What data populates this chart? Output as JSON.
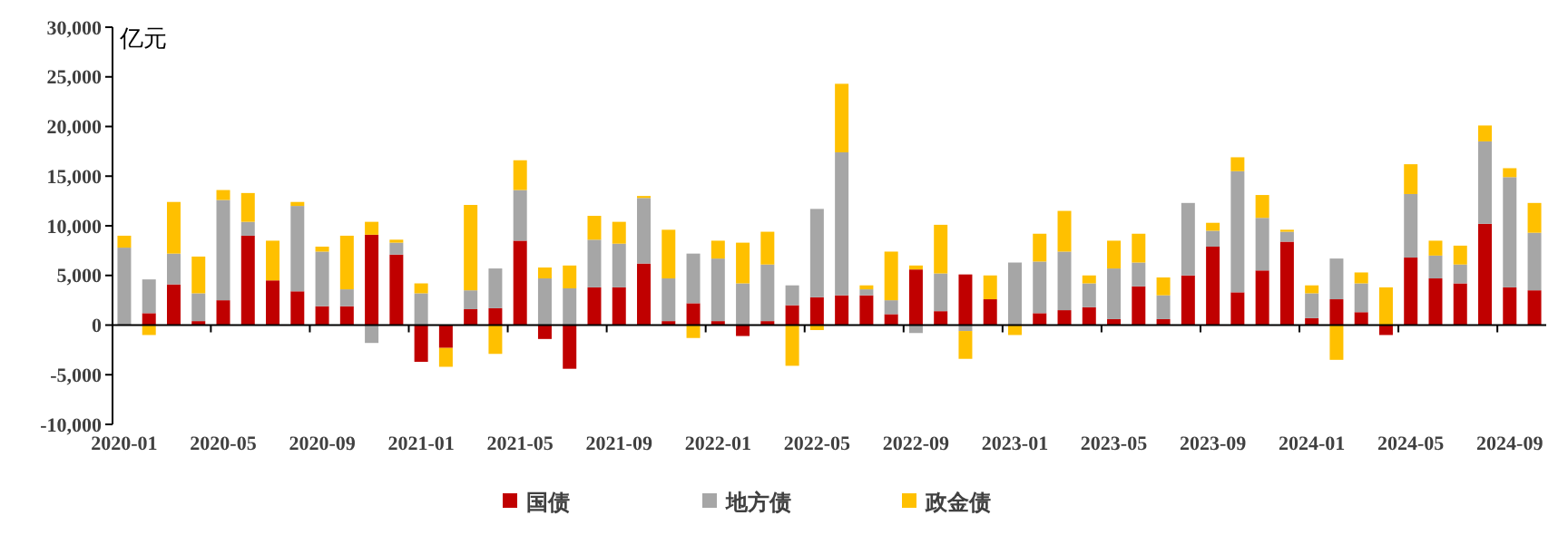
{
  "chart_data": {
    "type": "bar",
    "stacked": true,
    "ylabel": "亿元",
    "legend": "bottom",
    "categories": [
      "2020-01",
      null,
      null,
      null,
      "2020-05",
      null,
      null,
      null,
      "2020-09",
      null,
      null,
      null,
      "2021-01",
      null,
      null,
      null,
      "2021-05",
      null,
      null,
      null,
      "2021-09",
      null,
      null,
      null,
      "2022-01",
      null,
      null,
      null,
      "2022-05",
      null,
      null,
      null,
      "2022-09",
      null,
      null,
      null,
      "2023-01",
      null,
      null,
      null,
      "2023-05",
      null,
      null,
      null,
      "2023-09",
      null,
      null,
      null,
      "2024-01",
      null,
      null,
      null,
      "2024-05",
      null,
      null,
      null,
      "2024-09",
      null
    ],
    "ylim": [
      -10000,
      30000
    ],
    "yticks": [
      {
        "value": -10000,
        "label": "-10,000"
      },
      {
        "value": -5000,
        "label": "-5,000"
      },
      0,
      {
        "value": 5000,
        "label": "5,000"
      },
      {
        "value": 10000,
        "label": "10,000"
      },
      {
        "value": 15000,
        "label": "15,000"
      },
      {
        "value": 20000,
        "label": "20,000"
      },
      {
        "value": 25000,
        "label": "25,000"
      },
      {
        "value": 30000,
        "label": "30,000"
      }
    ],
    "series": [
      {
        "name": "国债",
        "color": "#c00000",
        "values": [
          0,
          1200,
          4100,
          400,
          2500,
          9000,
          4500,
          3400,
          1900,
          1900,
          9100,
          7100,
          -3700,
          -2300,
          1600,
          1700,
          8500,
          -1400,
          -4400,
          3800,
          3800,
          6200,
          400,
          2200,
          400,
          -1100,
          400,
          2000,
          2800,
          3000,
          3000,
          1100,
          5600,
          1400,
          5100,
          2600,
          0,
          1200,
          1500,
          1800,
          600,
          3900,
          600,
          5000,
          7900,
          3300,
          5500,
          8400,
          700,
          2600,
          1300,
          -1000,
          6800,
          4700,
          4200,
          10200,
          3800,
          3500
        ]
      },
      {
        "name": "地方债",
        "color": "#a6a6a6",
        "values": [
          7800,
          3400,
          3100,
          2800,
          10100,
          1400,
          null,
          8600,
          5500,
          1700,
          -1800,
          1200,
          3200,
          null,
          1900,
          4000,
          5100,
          4700,
          3700,
          4800,
          4400,
          6600,
          4300,
          5000,
          6300,
          4200,
          5700,
          2000,
          8900,
          14400,
          600,
          1400,
          -800,
          3800,
          -600,
          null,
          6300,
          5200,
          5900,
          2400,
          5100,
          2400,
          2400,
          7300,
          1600,
          12200,
          5300,
          1000,
          2500,
          4100,
          2900,
          null,
          6400,
          2300,
          1900,
          8300,
          11100,
          5800
        ]
      },
      {
        "name": "政金债",
        "color": "#ffc000",
        "values": [
          1200,
          -1000,
          5200,
          3700,
          1000,
          2900,
          4000,
          400,
          500,
          5400,
          1300,
          300,
          1000,
          -1900,
          8600,
          -2900,
          3000,
          1100,
          2300,
          2400,
          2200,
          200,
          4900,
          -1300,
          1800,
          4100,
          3300,
          -4100,
          -500,
          6900,
          400,
          4900,
          400,
          4900,
          -2800,
          2400,
          -1000,
          2800,
          4100,
          800,
          2800,
          2900,
          1800,
          null,
          800,
          1400,
          2300,
          200,
          800,
          -3500,
          1100,
          3800,
          3000,
          1500,
          1900,
          1600,
          900,
          3000
        ]
      }
    ]
  }
}
